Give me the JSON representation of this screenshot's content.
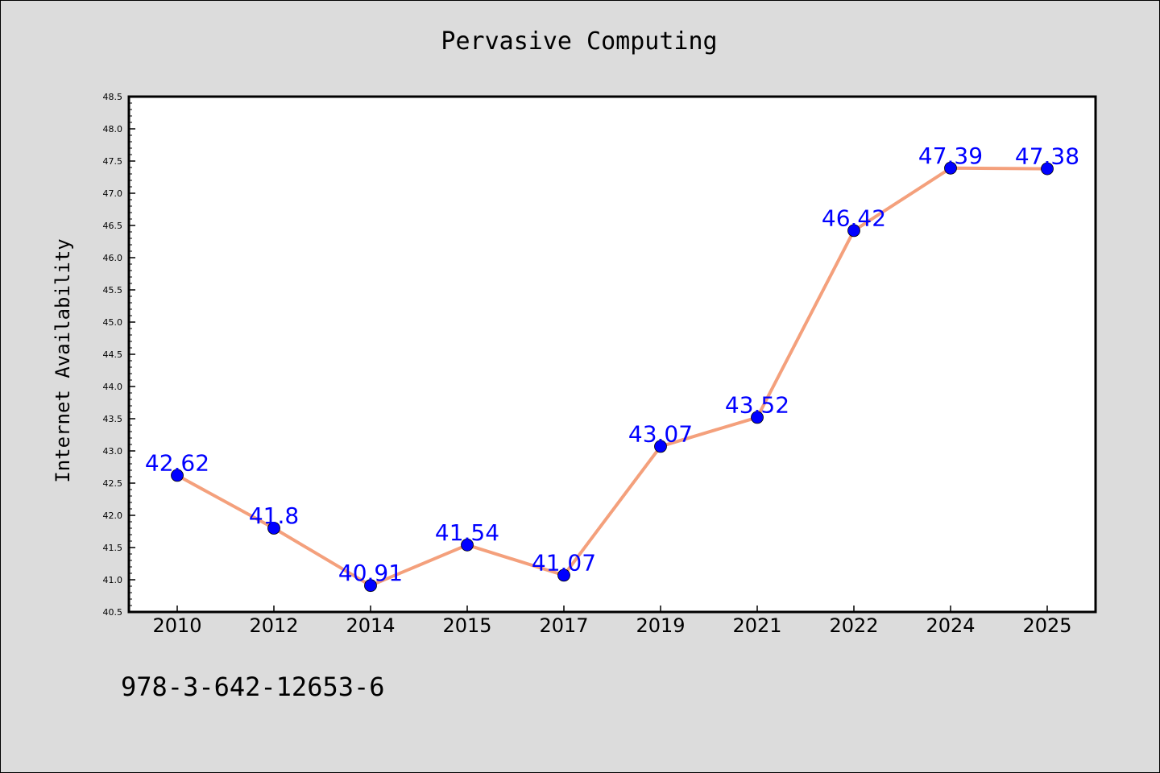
{
  "chart_data": {
    "type": "line",
    "title": "Pervasive Computing",
    "xlabel": "",
    "ylabel": "Internet Availability",
    "categories": [
      "2010",
      "2012",
      "2014",
      "2015",
      "2017",
      "2019",
      "2021",
      "2022",
      "2024",
      "2025"
    ],
    "values": [
      42.62,
      41.8,
      40.91,
      41.54,
      41.07,
      43.07,
      43.52,
      46.42,
      47.39,
      47.38
    ],
    "data_labels": [
      "42.62",
      "41.8",
      "40.91",
      "41.54",
      "41.07",
      "43.07",
      "43.52",
      "46.42",
      "47.39",
      "47.38"
    ],
    "ylim": [
      40.5,
      48.5
    ],
    "yticks": [
      "40.5",
      "41.0",
      "41.5",
      "42.0",
      "42.5",
      "43.0",
      "43.5",
      "44.0",
      "44.5",
      "45.0",
      "45.5",
      "46.0",
      "46.5",
      "47.0",
      "47.5",
      "48.0",
      "48.5"
    ],
    "grid": false,
    "line_color": "#f4a07c",
    "marker_color": "#0000ff",
    "label_color": "#0000ff"
  },
  "footer": {
    "code": "978-3-642-12653-6"
  }
}
